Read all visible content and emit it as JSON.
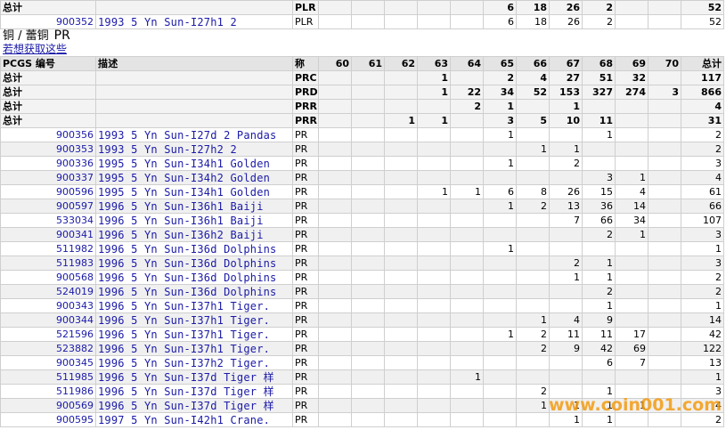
{
  "top_table": {
    "summary_rows": [
      [
        "总计",
        null,
        "PLR",
        null,
        null,
        null,
        null,
        null,
        6,
        18,
        26,
        2,
        null,
        null,
        52
      ]
    ],
    "rows": [
      [
        "900352",
        "1993 5 Yn Sun-I27h1 2",
        "PLR",
        null,
        null,
        null,
        null,
        null,
        6,
        18,
        26,
        2,
        null,
        null,
        52
      ]
    ]
  },
  "section": {
    "title": "铜 / 蕾铜",
    "grade": "PR",
    "link": "若想获取这些"
  },
  "table": {
    "header": [
      "PCGS 编号",
      "描述",
      "称",
      60,
      61,
      62,
      63,
      64,
      65,
      66,
      67,
      68,
      69,
      70,
      "总计"
    ],
    "summary_rows": [
      [
        "总计",
        null,
        "PRC",
        null,
        null,
        null,
        1,
        null,
        2,
        4,
        27,
        51,
        32,
        null,
        117
      ],
      [
        "总计",
        null,
        "PRD",
        null,
        null,
        null,
        1,
        22,
        34,
        52,
        153,
        327,
        274,
        3,
        866
      ],
      [
        "总计",
        null,
        "PRR",
        null,
        null,
        null,
        null,
        2,
        1,
        null,
        1,
        null,
        null,
        null,
        4
      ],
      [
        "总计",
        null,
        "PRR",
        null,
        null,
        1,
        1,
        null,
        3,
        5,
        10,
        11,
        null,
        null,
        31
      ]
    ],
    "rows": [
      [
        "900356",
        "1993 5 Yn Sun-I27d 2 Pandas",
        "PR",
        null,
        null,
        null,
        null,
        null,
        1,
        null,
        null,
        1,
        null,
        null,
        2
      ],
      [
        "900353",
        "1993 5 Yn Sun-I27h2 2",
        "PR",
        null,
        null,
        null,
        null,
        null,
        null,
        1,
        1,
        null,
        null,
        null,
        2
      ],
      [
        "900336",
        "1995 5 Yn Sun-I34h1 Golden",
        "PR",
        null,
        null,
        null,
        null,
        null,
        1,
        null,
        2,
        null,
        null,
        null,
        3
      ],
      [
        "900337",
        "1995 5 Yn Sun-I34h2 Golden",
        "PR",
        null,
        null,
        null,
        null,
        null,
        null,
        null,
        null,
        3,
        1,
        null,
        4
      ],
      [
        "900596",
        "1995 5 Yn Sun-I34h1 Golden",
        "PR",
        null,
        null,
        null,
        1,
        1,
        6,
        8,
        26,
        15,
        4,
        null,
        61
      ],
      [
        "900597",
        "1996 5 Yn Sun-I36h1 Baiji",
        "PR",
        null,
        null,
        null,
        null,
        null,
        1,
        2,
        13,
        36,
        14,
        null,
        66
      ],
      [
        "533034",
        "1996 5 Yn Sun-I36h1 Baiji",
        "PR",
        null,
        null,
        null,
        null,
        null,
        null,
        null,
        7,
        66,
        34,
        null,
        107
      ],
      [
        "900341",
        "1996 5 Yn Sun-I36h2 Baiji",
        "PR",
        null,
        null,
        null,
        null,
        null,
        null,
        null,
        null,
        2,
        1,
        null,
        3
      ],
      [
        "511982",
        "1996 5 Yn Sun-I36d Dolphins",
        "PR",
        null,
        null,
        null,
        null,
        null,
        1,
        null,
        null,
        null,
        null,
        null,
        1
      ],
      [
        "511983",
        "1996 5 Yn Sun-I36d Dolphins",
        "PR",
        null,
        null,
        null,
        null,
        null,
        null,
        null,
        2,
        1,
        null,
        null,
        3
      ],
      [
        "900568",
        "1996 5 Yn Sun-I36d Dolphins",
        "PR",
        null,
        null,
        null,
        null,
        null,
        null,
        null,
        1,
        1,
        null,
        null,
        2
      ],
      [
        "524019",
        "1996 5 Yn Sun-I36d Dolphins",
        "PR",
        null,
        null,
        null,
        null,
        null,
        null,
        null,
        null,
        2,
        null,
        null,
        2
      ],
      [
        "900343",
        "1996 5 Yn Sun-I37h1 Tiger.",
        "PR",
        null,
        null,
        null,
        null,
        null,
        null,
        null,
        null,
        1,
        null,
        null,
        1
      ],
      [
        "900344",
        "1996 5 Yn Sun-I37h1 Tiger.",
        "PR",
        null,
        null,
        null,
        null,
        null,
        null,
        1,
        4,
        9,
        null,
        null,
        14
      ],
      [
        "521596",
        "1996 5 Yn Sun-I37h1 Tiger.",
        "PR",
        null,
        null,
        null,
        null,
        null,
        1,
        2,
        11,
        11,
        17,
        null,
        42
      ],
      [
        "523882",
        "1996 5 Yn Sun-I37h1 Tiger.",
        "PR",
        null,
        null,
        null,
        null,
        null,
        null,
        2,
        9,
        42,
        69,
        null,
        122
      ],
      [
        "900345",
        "1996 5 Yn Sun-I37h2 Tiger.",
        "PR",
        null,
        null,
        null,
        null,
        null,
        null,
        null,
        null,
        6,
        7,
        null,
        13
      ],
      [
        "511985",
        "1996 5 Yn Sun-I37d Tiger 样",
        "PR",
        null,
        null,
        null,
        null,
        1,
        null,
        null,
        null,
        null,
        null,
        null,
        1
      ],
      [
        "511986",
        "1996 5 Yn Sun-I37d Tiger 样",
        "PR",
        null,
        null,
        null,
        null,
        null,
        null,
        2,
        null,
        1,
        null,
        null,
        3
      ],
      [
        "900569",
        "1996 5 Yn Sun-I37d Tiger 样",
        "PR",
        null,
        null,
        null,
        null,
        null,
        null,
        1,
        1,
        1,
        1,
        null,
        4
      ],
      [
        "900595",
        "1997 5 Yn Sun-I42h1 Crane.",
        "PR",
        null,
        null,
        null,
        null,
        null,
        null,
        null,
        1,
        1,
        null,
        null,
        2
      ]
    ]
  },
  "watermark": "www.coin001.com"
}
